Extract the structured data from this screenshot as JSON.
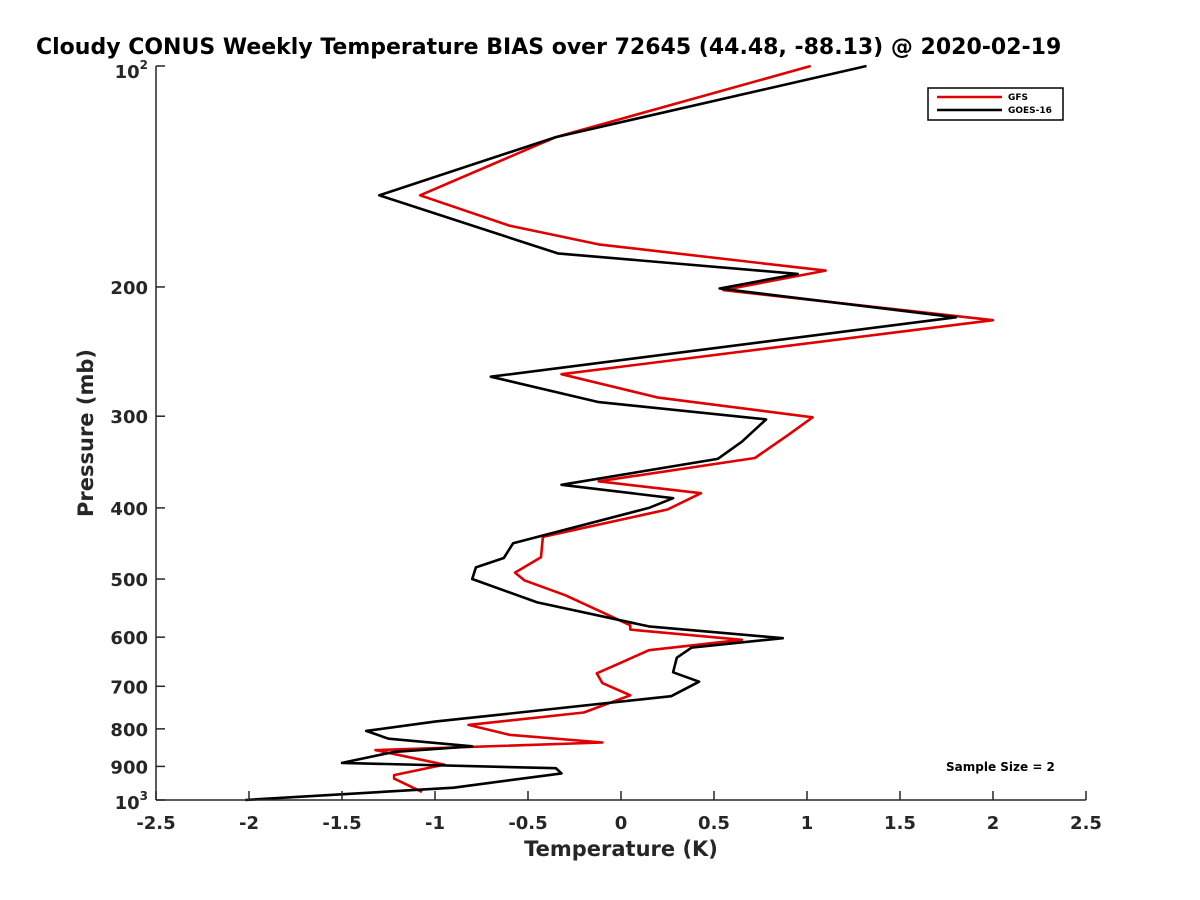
{
  "chart_data": {
    "type": "line",
    "title": "Cloudy CONUS Weekly Temperature BIAS over 72645 (44.48, -88.13) @ 2020-02-19",
    "xlabel": "Temperature (K)",
    "ylabel": "Pressure (mb)",
    "xlim": [
      -2.5,
      2.5
    ],
    "ylim": [
      100,
      1000
    ],
    "y_scale": "log",
    "y_reversed": true,
    "grid": false,
    "legend_position": "top-right",
    "x_ticks": [
      -2.5,
      -2,
      -1.5,
      -1,
      -0.5,
      0,
      0.5,
      1,
      1.5,
      2,
      2.5
    ],
    "x_tick_labels": [
      "-2.5",
      "-2",
      "-1.5",
      "-1",
      "-0.5",
      "0",
      "0.5",
      "1",
      "1.5",
      "2",
      "2.5"
    ],
    "y_ticks": [
      200,
      300,
      400,
      500,
      600,
      700,
      800,
      900
    ],
    "y_tick_labels": [
      "200",
      "300",
      "400",
      "500",
      "600",
      "700",
      "800",
      "900"
    ],
    "y_tick_top": {
      "base": "10",
      "exp": "2"
    },
    "y_tick_bottom": {
      "base": "10",
      "exp": "3"
    },
    "annotation": "Sample Size = 2",
    "series": [
      {
        "name": "GFS",
        "color": "#e00000",
        "points": [
          [
            1.02,
            100
          ],
          [
            -0.35,
            125
          ],
          [
            -1.08,
            150
          ],
          [
            -0.6,
            165
          ],
          [
            -0.12,
            175
          ],
          [
            1.1,
            190
          ],
          [
            0.55,
            202
          ],
          [
            2.0,
            222
          ],
          [
            -0.32,
            263
          ],
          [
            0.2,
            283
          ],
          [
            1.03,
            301
          ],
          [
            0.9,
            318
          ],
          [
            0.72,
            342
          ],
          [
            -0.12,
            368
          ],
          [
            0.43,
            382
          ],
          [
            0.25,
            402
          ],
          [
            -0.42,
            438
          ],
          [
            -0.43,
            467
          ],
          [
            -0.57,
            490
          ],
          [
            -0.52,
            502
          ],
          [
            -0.3,
            526
          ],
          [
            -0.1,
            555
          ],
          [
            0.05,
            578
          ],
          [
            0.05,
            586
          ],
          [
            0.65,
            605
          ],
          [
            0.15,
            625
          ],
          [
            0,
            650
          ],
          [
            -0.13,
            672
          ],
          [
            -0.1,
            693
          ],
          [
            0.05,
            720
          ],
          [
            -0.2,
            760
          ],
          [
            -0.82,
            790
          ],
          [
            -0.6,
            815
          ],
          [
            -0.1,
            835
          ],
          [
            -1.32,
            855
          ],
          [
            -0.95,
            895
          ],
          [
            -1.22,
            925
          ],
          [
            -1.22,
            935
          ],
          [
            -1.07,
            975
          ]
        ]
      },
      {
        "name": "GOES-16",
        "color": "#000000",
        "points": [
          [
            1.32,
            100
          ],
          [
            -0.35,
            125
          ],
          [
            -1.3,
            150
          ],
          [
            -0.34,
            180
          ],
          [
            0.95,
            192
          ],
          [
            0.53,
            201
          ],
          [
            1.8,
            220
          ],
          [
            -0.7,
            265
          ],
          [
            -0.12,
            287
          ],
          [
            0.78,
            303
          ],
          [
            0.65,
            325
          ],
          [
            0.52,
            343
          ],
          [
            -0.32,
            372
          ],
          [
            0.28,
            388
          ],
          [
            0.15,
            400
          ],
          [
            -0.58,
            447
          ],
          [
            -0.63,
            468
          ],
          [
            -0.78,
            482
          ],
          [
            -0.8,
            500
          ],
          [
            -0.45,
            538
          ],
          [
            0.15,
            580
          ],
          [
            0.87,
            602
          ],
          [
            0.38,
            620
          ],
          [
            0.3,
            640
          ],
          [
            0.28,
            670
          ],
          [
            0.42,
            690
          ],
          [
            0.27,
            722
          ],
          [
            -1.0,
            782
          ],
          [
            -1.37,
            805
          ],
          [
            -1.25,
            825
          ],
          [
            -0.8,
            845
          ],
          [
            -1.22,
            860
          ],
          [
            -1.5,
            890
          ],
          [
            -0.35,
            905
          ],
          [
            -0.32,
            920
          ],
          [
            -0.9,
            962
          ],
          [
            -2.02,
            1000
          ]
        ]
      }
    ]
  }
}
